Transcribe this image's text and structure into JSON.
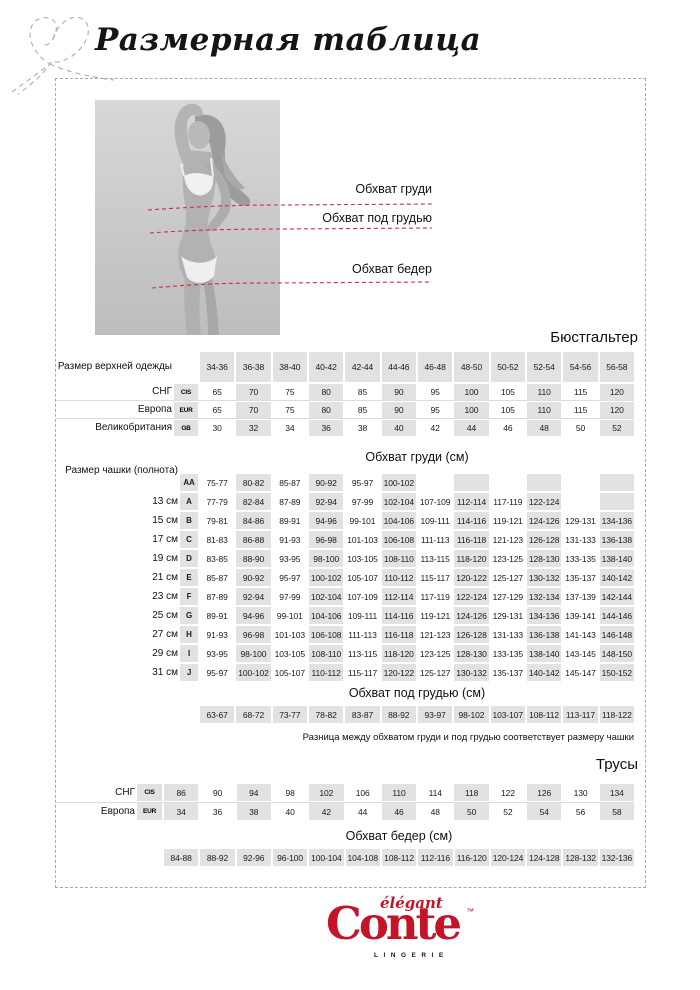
{
  "title": "Размерная таблица",
  "colors": {
    "accent_red": "#c41428",
    "cell_gray": "#e2e2e2",
    "dash_gray": "#a9a9a9"
  },
  "figure": {
    "labels": [
      "Обхват груди",
      "Обхват под грудью",
      "Обхват бедер"
    ]
  },
  "bra": {
    "section_title": "Бюстгальтер",
    "size_row_label": "Размер верхней одежды",
    "sizes": [
      "34-36",
      "36-38",
      "38-40",
      "40-42",
      "42-44",
      "44-46",
      "46-48",
      "48-50",
      "50-52",
      "52-54",
      "54-56",
      "56-58"
    ],
    "rows": [
      {
        "label": "СНГ",
        "badge": "CIS",
        "values": [
          "65",
          "70",
          "75",
          "80",
          "85",
          "90",
          "95",
          "100",
          "105",
          "110",
          "115",
          "120"
        ]
      },
      {
        "label": "Европа",
        "badge": "EUR",
        "values": [
          "65",
          "70",
          "75",
          "80",
          "85",
          "90",
          "95",
          "100",
          "105",
          "110",
          "115",
          "120"
        ]
      },
      {
        "label": "Великобритания",
        "badge": "GB",
        "values": [
          "30",
          "32",
          "34",
          "36",
          "38",
          "40",
          "42",
          "44",
          "46",
          "48",
          "50",
          "52"
        ]
      }
    ]
  },
  "cups": {
    "header": "Обхват груди (см)",
    "row_label": "Размер чашки (полнота)",
    "rows": [
      {
        "depth": "",
        "cup": "AA",
        "values": [
          "75-77",
          "80-82",
          "85-87",
          "90-92",
          "95-97",
          "100-102",
          "",
          "",
          "",
          "",
          "",
          ""
        ]
      },
      {
        "depth": "13 см",
        "cup": "A",
        "values": [
          "77-79",
          "82-84",
          "87-89",
          "92-94",
          "97-99",
          "102-104",
          "107-109",
          "112-114",
          "117-119",
          "122-124",
          "",
          ""
        ]
      },
      {
        "depth": "15 см",
        "cup": "B",
        "values": [
          "79-81",
          "84-86",
          "89-91",
          "94-96",
          "99-101",
          "104-106",
          "109-111",
          "114-116",
          "119-121",
          "124-126",
          "129-131",
          "134-136"
        ]
      },
      {
        "depth": "17 см",
        "cup": "C",
        "values": [
          "81-83",
          "86-88",
          "91-93",
          "96-98",
          "101-103",
          "106-108",
          "111-113",
          "116-118",
          "121-123",
          "126-128",
          "131-133",
          "136-138"
        ]
      },
      {
        "depth": "19 см",
        "cup": "D",
        "values": [
          "83-85",
          "88-90",
          "93-95",
          "98-100",
          "103-105",
          "108-110",
          "113-115",
          "118-120",
          "123-125",
          "128-130",
          "133-135",
          "138-140"
        ]
      },
      {
        "depth": "21 см",
        "cup": "E",
        "values": [
          "85-87",
          "90-92",
          "95-97",
          "100-102",
          "105-107",
          "110-112",
          "115-117",
          "120-122",
          "125-127",
          "130-132",
          "135-137",
          "140-142"
        ]
      },
      {
        "depth": "23 см",
        "cup": "F",
        "values": [
          "87-89",
          "92-94",
          "97-99",
          "102-104",
          "107-109",
          "112-114",
          "117-119",
          "122-124",
          "127-129",
          "132-134",
          "137-139",
          "142-144"
        ]
      },
      {
        "depth": "25 см",
        "cup": "G",
        "values": [
          "89-91",
          "94-96",
          "99-101",
          "104-106",
          "109-111",
          "114-116",
          "119-121",
          "124-126",
          "129-131",
          "134-136",
          "139-141",
          "144-146"
        ]
      },
      {
        "depth": "27 см",
        "cup": "H",
        "values": [
          "91-93",
          "96-98",
          "101-103",
          "106-108",
          "111-113",
          "116-118",
          "121-123",
          "126-128",
          "131-133",
          "136-138",
          "141-143",
          "146-148"
        ]
      },
      {
        "depth": "29 см",
        "cup": "I",
        "values": [
          "93-95",
          "98-100",
          "103-105",
          "108-110",
          "113-115",
          "118-120",
          "123-125",
          "128-130",
          "133-135",
          "138-140",
          "143-145",
          "148-150"
        ]
      },
      {
        "depth": "31 см",
        "cup": "J",
        "values": [
          "95-97",
          "100-102",
          "105-107",
          "110-112",
          "115-117",
          "120-122",
          "125-127",
          "130-132",
          "135-137",
          "140-142",
          "145-147",
          "150-152"
        ]
      }
    ]
  },
  "underbust": {
    "header": "Обхват под грудью (см)",
    "values": [
      "63-67",
      "68-72",
      "73-77",
      "78-82",
      "83-87",
      "88-92",
      "93-97",
      "98-102",
      "103-107",
      "108-112",
      "113-117",
      "118-122"
    ],
    "note": "Разница между обхватом груди и под грудью соответствует размеру чашки"
  },
  "panties": {
    "section_title": "Трусы",
    "rows": [
      {
        "label": "СНГ",
        "badge": "CIS",
        "values": [
          "86",
          "90",
          "94",
          "98",
          "102",
          "106",
          "110",
          "114",
          "118",
          "122",
          "126",
          "130",
          "134"
        ]
      },
      {
        "label": "Европа",
        "badge": "EUR",
        "values": [
          "34",
          "36",
          "38",
          "40",
          "42",
          "44",
          "46",
          "48",
          "50",
          "52",
          "54",
          "56",
          "58"
        ]
      }
    ],
    "hips_header": "Обхват бедер (см)",
    "hips": [
      "84-88",
      "88-92",
      "92-96",
      "96-100",
      "100-104",
      "104-108",
      "108-112",
      "112-116",
      "116-120",
      "120-124",
      "124-128",
      "128-132",
      "132-136"
    ]
  },
  "logo": {
    "script": "élégant",
    "name": "Conte",
    "tm": "™",
    "sub": "LINGERIE"
  }
}
